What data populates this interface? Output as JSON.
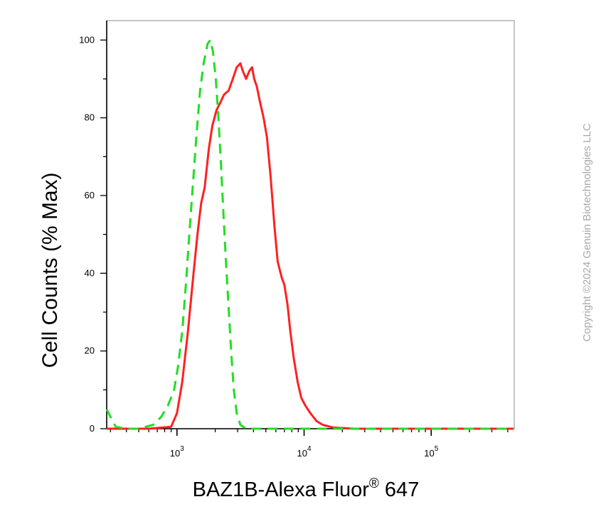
{
  "chart_data": {
    "type": "line",
    "xlabel": "BAZ1B-Alexa Fluor",
    "xlabel_superscript": "®",
    "xlabel_suffix": " 647",
    "ylabel": "Cell Counts (% Max)",
    "x_scale": "log",
    "xlim": [
      280,
      450000
    ],
    "ylim": [
      0,
      105
    ],
    "x_ticks": [
      {
        "value": 1000,
        "base": "10",
        "exp": "3"
      },
      {
        "value": 10000,
        "base": "10",
        "exp": "4"
      },
      {
        "value": 100000,
        "base": "10",
        "exp": "5"
      }
    ],
    "y_ticks": [
      "0",
      "20",
      "40",
      "60",
      "80",
      "100"
    ],
    "grid": false,
    "legend": "none",
    "series": [
      {
        "color": "#ff2020",
        "dash": false,
        "points": [
          [
            280,
            0
          ],
          [
            600,
            0
          ],
          [
            900,
            0.5
          ],
          [
            1000,
            4
          ],
          [
            1100,
            12
          ],
          [
            1220,
            25
          ],
          [
            1350,
            40
          ],
          [
            1450,
            50
          ],
          [
            1550,
            58
          ],
          [
            1650,
            62
          ],
          [
            1780,
            72
          ],
          [
            1900,
            78
          ],
          [
            2050,
            82
          ],
          [
            2200,
            84
          ],
          [
            2350,
            86
          ],
          [
            2550,
            87
          ],
          [
            2750,
            90
          ],
          [
            2950,
            93
          ],
          [
            3150,
            94
          ],
          [
            3300,
            92
          ],
          [
            3500,
            90
          ],
          [
            3700,
            92
          ],
          [
            3900,
            93
          ],
          [
            4050,
            90
          ],
          [
            4250,
            88
          ],
          [
            4500,
            84
          ],
          [
            4800,
            80
          ],
          [
            5100,
            75
          ],
          [
            5450,
            65
          ],
          [
            5850,
            52
          ],
          [
            6200,
            43
          ],
          [
            6650,
            39
          ],
          [
            7000,
            37
          ],
          [
            7400,
            32
          ],
          [
            7800,
            25
          ],
          [
            8300,
            18
          ],
          [
            8900,
            12
          ],
          [
            9500,
            8
          ],
          [
            10200,
            6
          ],
          [
            11200,
            4
          ],
          [
            12500,
            2
          ],
          [
            14000,
            1
          ],
          [
            17000,
            0.3
          ],
          [
            25000,
            0
          ],
          [
            450000,
            0
          ]
        ]
      },
      {
        "color": "#22dd22",
        "dash": true,
        "points": [
          [
            280,
            5
          ],
          [
            300,
            3
          ],
          [
            330,
            0.5
          ],
          [
            400,
            0
          ],
          [
            500,
            0
          ],
          [
            650,
            1
          ],
          [
            750,
            3
          ],
          [
            850,
            6
          ],
          [
            950,
            10
          ],
          [
            1020,
            16
          ],
          [
            1100,
            25
          ],
          [
            1180,
            38
          ],
          [
            1250,
            50
          ],
          [
            1330,
            62
          ],
          [
            1420,
            75
          ],
          [
            1520,
            87
          ],
          [
            1620,
            94
          ],
          [
            1740,
            99
          ],
          [
            1830,
            100
          ],
          [
            1920,
            97
          ],
          [
            2020,
            90
          ],
          [
            2120,
            80
          ],
          [
            2220,
            68
          ],
          [
            2330,
            54
          ],
          [
            2440,
            42
          ],
          [
            2560,
            30
          ],
          [
            2680,
            19
          ],
          [
            2800,
            10
          ],
          [
            2950,
            4
          ],
          [
            3150,
            1
          ],
          [
            3500,
            0
          ],
          [
            450000,
            0
          ]
        ]
      }
    ]
  },
  "watermark": "Copyright ©2024 Genuin Biotechnologies LLC"
}
